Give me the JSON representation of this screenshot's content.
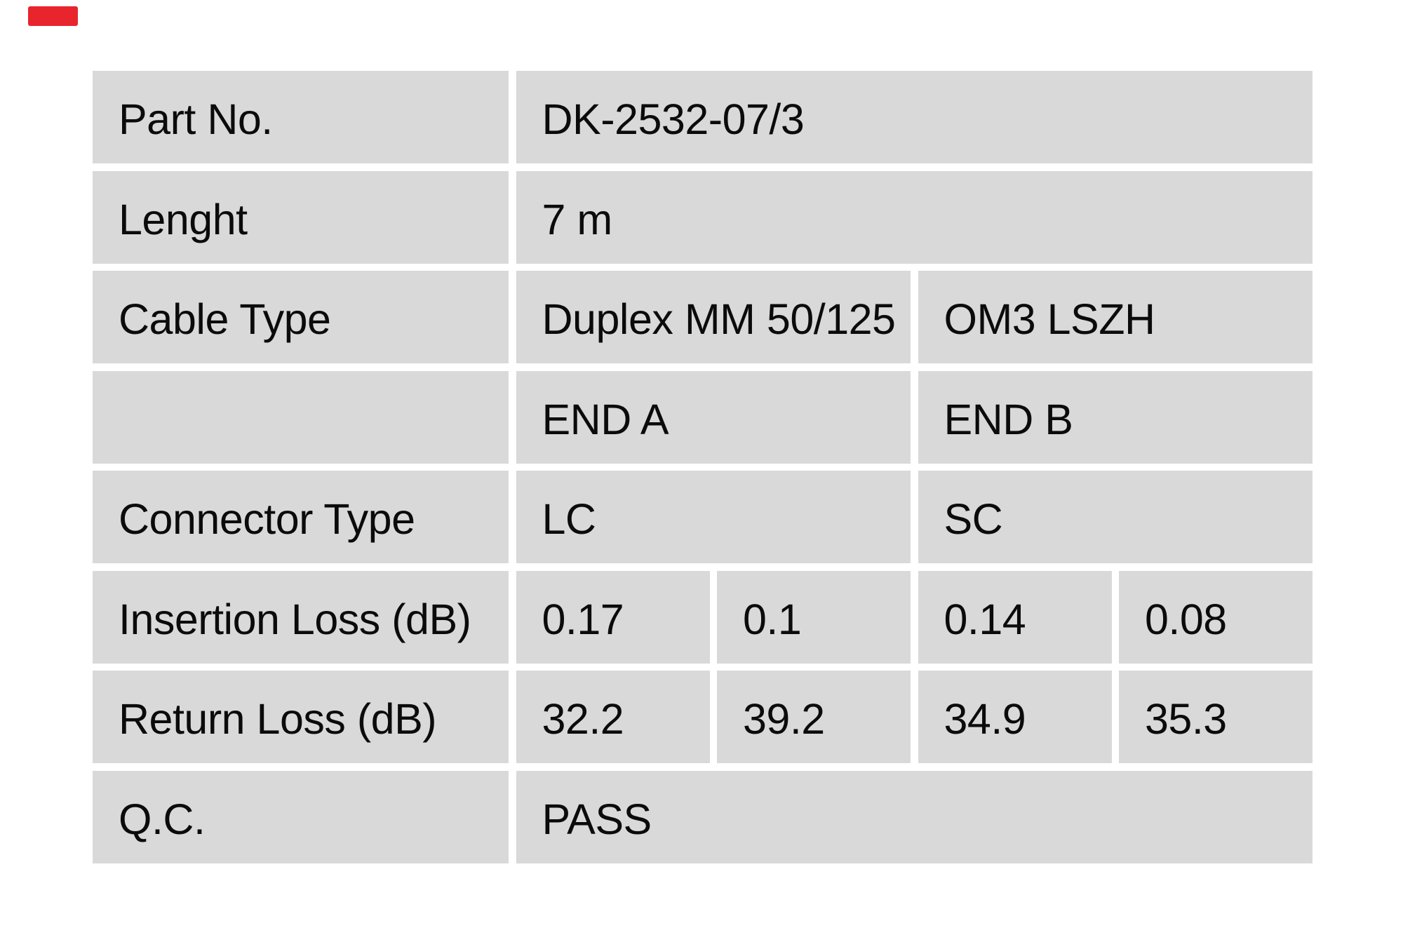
{
  "marker": {
    "color": "#e8242c"
  },
  "table": {
    "cell_background": "#d9d9d9",
    "text_color": "#0b0b0b",
    "rows": [
      {
        "cells": [
          {
            "t": "Part No."
          },
          {
            "t": "DK-2532-07/3",
            "span": 4
          }
        ]
      },
      {
        "cells": [
          {
            "t": "Lenght"
          },
          {
            "t": "7 m",
            "span": 4
          }
        ]
      },
      {
        "cells": [
          {
            "t": "Cable Type"
          },
          {
            "t": "Duplex MM 50/125",
            "span": 2
          },
          {
            "t": "OM3 LSZH",
            "span": 2
          }
        ]
      },
      {
        "cells": [
          {
            "t": ""
          },
          {
            "t": "END A",
            "span": 2
          },
          {
            "t": "END B",
            "span": 2
          }
        ]
      },
      {
        "cells": [
          {
            "t": "Connector Type"
          },
          {
            "t": "LC",
            "span": 2
          },
          {
            "t": "SC",
            "span": 2
          }
        ]
      },
      {
        "cells": [
          {
            "t": "Insertion Loss (dB)"
          },
          {
            "t": "0.17"
          },
          {
            "t": "0.1"
          },
          {
            "t": "0.14"
          },
          {
            "t": "0.08"
          }
        ]
      },
      {
        "cells": [
          {
            "t": "Return Loss (dB)"
          },
          {
            "t": "32.2"
          },
          {
            "t": "39.2"
          },
          {
            "t": "34.9"
          },
          {
            "t": "35.3"
          }
        ]
      },
      {
        "cells": [
          {
            "t": "Q.C."
          },
          {
            "t": "PASS",
            "span": 4
          }
        ]
      }
    ]
  }
}
